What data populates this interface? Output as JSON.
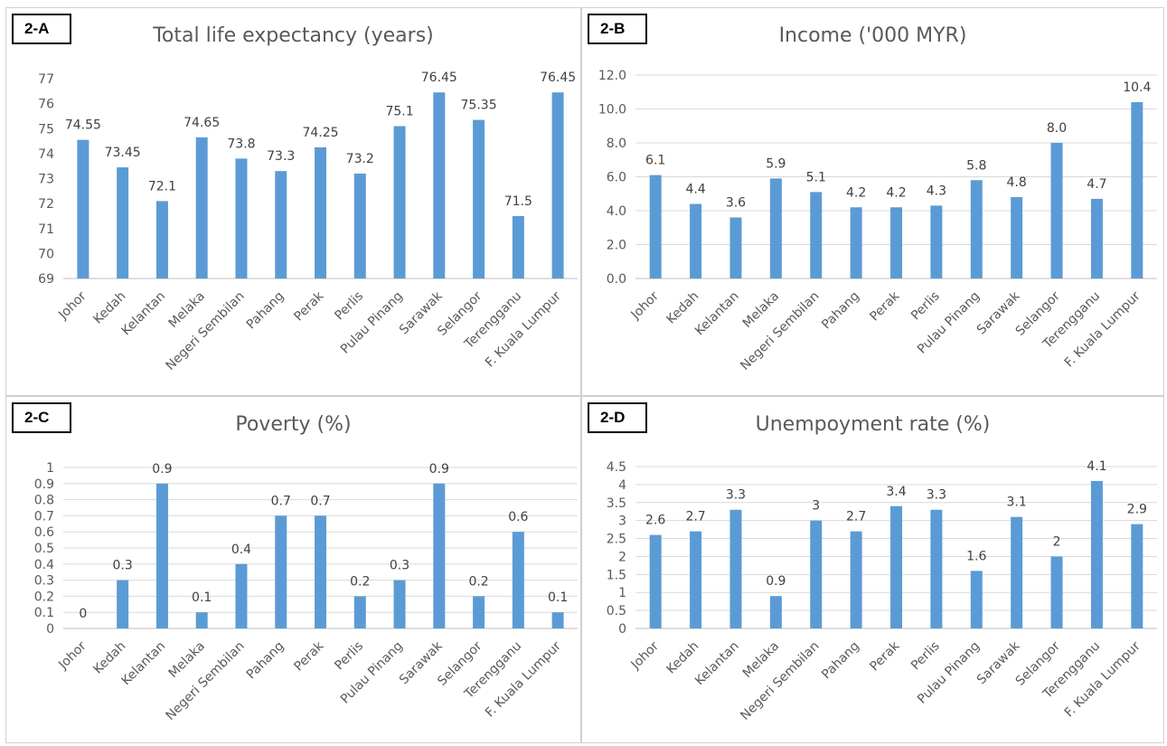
{
  "colors": {
    "bar": "#5b9bd5",
    "axis": "#bfbfbf",
    "grid": "#d9d9d9",
    "text": "#595959",
    "label": "#404040"
  },
  "chart_data": [
    {
      "tag": "2-A",
      "type": "bar",
      "title": "Total life expectancy (years)",
      "categories": [
        "Johor",
        "Kedah",
        "Kelantan",
        "Melaka",
        "Negeri Sembilan",
        "Pahang",
        "Perak",
        "Perlis",
        "Pulau Pinang",
        "Sarawak",
        "Selangor",
        "Terengganu",
        "F. Kuala Lumpur"
      ],
      "values": [
        74.55,
        73.45,
        72.1,
        74.65,
        73.8,
        73.3,
        74.25,
        73.2,
        75.1,
        76.45,
        75.35,
        71.5,
        76.45
      ],
      "value_labels": [
        "74.55",
        "73.45",
        "72.1",
        "74.65",
        "73.8",
        "73.3",
        "74.25",
        "73.2",
        "75.1",
        "76.45",
        "75.35",
        "71.5",
        "76.45"
      ],
      "ylim": [
        69,
        77
      ],
      "yticks": [
        "69",
        "70",
        "71",
        "72",
        "73",
        "74",
        "75",
        "76",
        "77"
      ],
      "grid": false
    },
    {
      "tag": "2-B",
      "type": "bar",
      "title": "Income ('000 MYR)",
      "categories": [
        "Johor",
        "Kedah",
        "Kelantan",
        "Melaka",
        "Negeri Sembilan",
        "Pahang",
        "Perak",
        "Perlis",
        "Pulau Pinang",
        "Sarawak",
        "Selangor",
        "Terengganu",
        "F. Kuala Lumpur"
      ],
      "values": [
        6.1,
        4.4,
        3.6,
        5.9,
        5.1,
        4.2,
        4.2,
        4.3,
        5.8,
        4.8,
        8.0,
        4.7,
        10.4
      ],
      "value_labels": [
        "6.1",
        "4.4",
        "3.6",
        "5.9",
        "5.1",
        "4.2",
        "4.2",
        "4.3",
        "5.8",
        "4.8",
        "8.0",
        "4.7",
        "10.4"
      ],
      "ylim": [
        0,
        12
      ],
      "yticks": [
        "0.0",
        "2.0",
        "4.0",
        "6.0",
        "8.0",
        "10.0",
        "12.0"
      ],
      "grid": true
    },
    {
      "tag": "2-C",
      "type": "bar",
      "title": "Poverty (%)",
      "categories": [
        "Johor",
        "Kedah",
        "Kelantan",
        "Melaka",
        "Negeri Sembilan",
        "Pahang",
        "Perak",
        "Perlis",
        "Pulau Pinang",
        "Sarawak",
        "Selangor",
        "Terengganu",
        "F. Kuala Lumpur"
      ],
      "values": [
        0,
        0.3,
        0.9,
        0.1,
        0.4,
        0.7,
        0.7,
        0.2,
        0.3,
        0.9,
        0.2,
        0.6,
        0.1
      ],
      "value_labels": [
        "0",
        "0.3",
        "0.9",
        "0.1",
        "0.4",
        "0.7",
        "0.7",
        "0.2",
        "0.3",
        "0.9",
        "0.2",
        "0.6",
        "0.1"
      ],
      "ylim": [
        0,
        1
      ],
      "yticks": [
        "0",
        "0.1",
        "0.2",
        "0.3",
        "0.4",
        "0.5",
        "0.6",
        "0.7",
        "0.8",
        "0.9",
        "1"
      ],
      "grid": true
    },
    {
      "tag": "2-D",
      "type": "bar",
      "title": "Unempoyment rate (%)",
      "categories": [
        "Johor",
        "Kedah",
        "Kelantan",
        "Melaka",
        "Negeri Sembilan",
        "Pahang",
        "Perak",
        "Perlis",
        "Pulau Pinang",
        "Sarawak",
        "Selangor",
        "Terengganu",
        "F. Kuala Lumpur"
      ],
      "values": [
        2.6,
        2.7,
        3.3,
        0.9,
        3,
        2.7,
        3.4,
        3.3,
        1.6,
        3.1,
        2,
        4.1,
        2.9
      ],
      "value_labels": [
        "2.6",
        "2.7",
        "3.3",
        "0.9",
        "3",
        "2.7",
        "3.4",
        "3.3",
        "1.6",
        "3.1",
        "2",
        "4.1",
        "2.9"
      ],
      "ylim": [
        0,
        4.5
      ],
      "yticks": [
        "0",
        "0.5",
        "1",
        "1.5",
        "2",
        "2.5",
        "3",
        "3.5",
        "4",
        "4.5"
      ],
      "grid": true
    }
  ]
}
